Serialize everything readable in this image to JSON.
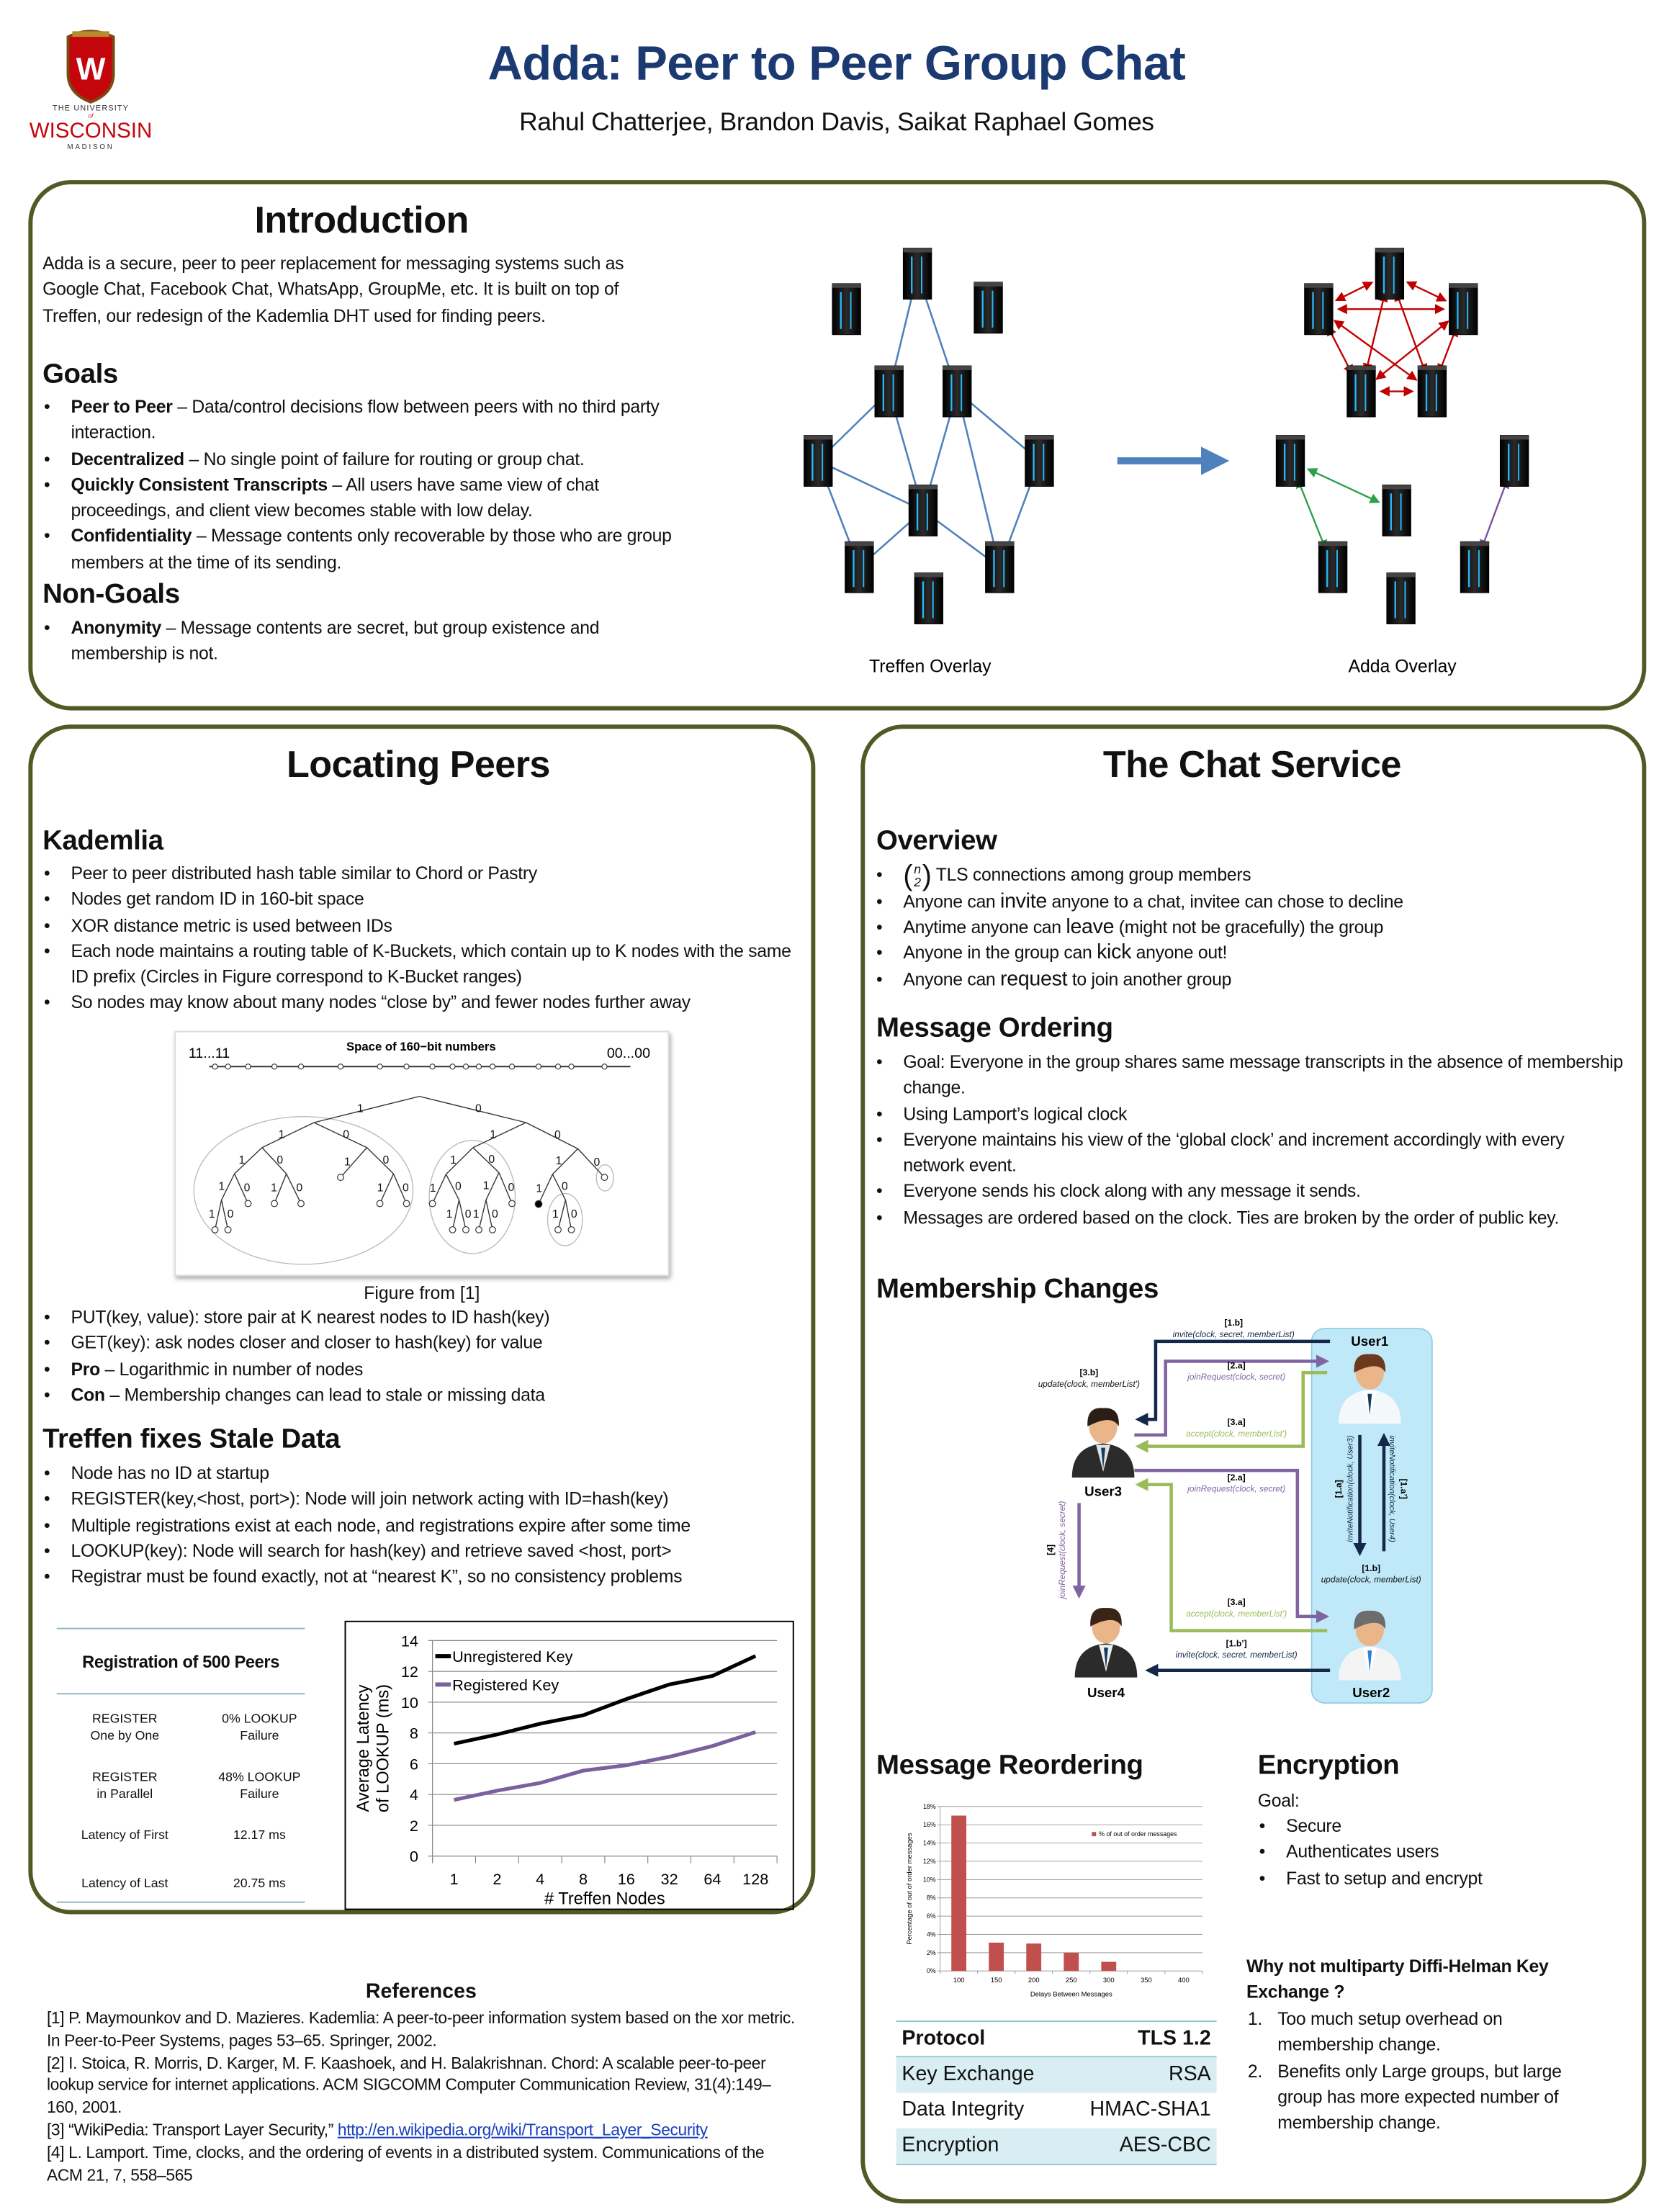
{
  "header": {
    "logo": {
      "line1": "THE UNIVERSITY",
      "line2": "of",
      "line3": "WISCONSIN",
      "line4": "MADISON",
      "crest_letter": "W",
      "crest_color": "#c5050c"
    },
    "title": "Adda: Peer to Peer Group Chat",
    "authors": "Rahul Chatterjee, Brandon Davis, Saikat Raphael Gomes"
  },
  "colors": {
    "title": "#1c3a72",
    "panel_border": "#4e5b24",
    "link": "#1a3fc0"
  },
  "intro": {
    "heading": "Introduction",
    "paragraph": "Adda is a secure, peer to peer replacement for messaging systems such as Google Chat, Facebook Chat, WhatsApp, GroupMe, etc. It is built on top of Treffen, our redesign of the Kademlia DHT used for finding peers.",
    "goals_heading": "Goals",
    "goals": [
      {
        "term": "Peer to Peer",
        "text": " – Data/control decisions flow between peers with no third party interaction."
      },
      {
        "term": "Decentralized",
        "text": " – No single point of failure for routing or group chat."
      },
      {
        "term": "Quickly Consistent Transcripts",
        "text": " – All users have same view of chat proceedings, and client view becomes stable with low delay."
      },
      {
        "term": "Confidentiality",
        "text": " – Message contents only recoverable by those who are group members at the time of its sending."
      }
    ],
    "nongoals_heading": "Non-Goals",
    "nongoals": [
      {
        "term": "Anonymity",
        "text": " – Message contents are secret, but group existence and membership is not."
      }
    ],
    "figure": {
      "treffen_label": "Treffen Overlay",
      "adda_label": "Adda Overlay",
      "icon": "server-icon"
    }
  },
  "locating": {
    "heading": "Locating Peers",
    "kademlia_heading": "Kademlia",
    "kademlia": [
      {
        "text": "Peer to peer distributed hash table similar to Chord or Pastry"
      },
      {
        "text": "Nodes get random ID in 160-bit space"
      },
      {
        "text": "XOR distance metric is used between IDs"
      },
      {
        "text": "Each node maintains a routing table of K-Buckets, which contain up to K nodes with the same ID prefix (Circles in Figure correspond to K-Bucket ranges)"
      },
      {
        "text": "So nodes may know about many nodes “close by” and fewer nodes further away"
      }
    ],
    "figure": {
      "title": "Space of 160−bit numbers",
      "left_label": "11...11",
      "right_label": "00...00",
      "bit_one": "1",
      "bit_zero": "0",
      "caption": "Figure from [1]"
    },
    "ops": [
      {
        "text": "PUT(key, value): store pair at K nearest nodes to ID hash(key)"
      },
      {
        "text": "GET(key): ask nodes closer and closer to hash(key) for value"
      },
      {
        "term": "Pro",
        "text": " – Logarithmic in number of nodes"
      },
      {
        "term": "Con",
        "text": " – Membership changes can lead to stale or missing data"
      }
    ],
    "treffen_heading": "Treffen fixes Stale Data",
    "treffen": [
      {
        "text": "Node has no ID at startup"
      },
      {
        "text": "REGISTER(key,<host, port>): Node will join network acting with ID=hash(key)"
      },
      {
        "text": "Multiple registrations exist at each node, and registrations expire after some time"
      },
      {
        "text": "LOOKUP(key): Node will search for hash(key) and retrieve saved <host, port>"
      },
      {
        "text": "Registrar must be found exactly, not at “nearest K”, so no consistency problems"
      }
    ],
    "registration_table": {
      "title": "Registration of 500 Peers",
      "rows": [
        {
          "label": [
            "REGISTER",
            "One by One"
          ],
          "value": [
            "0% LOOKUP",
            "Failure"
          ]
        },
        {
          "label": [
            "REGISTER",
            "in Parallel"
          ],
          "value": [
            "48% LOOKUP",
            "Failure"
          ]
        },
        {
          "label": [
            "Latency of First"
          ],
          "value": [
            "12.17 ms"
          ]
        },
        {
          "label": [
            "Latency of Last"
          ],
          "value": [
            "20.75 ms"
          ]
        }
      ]
    }
  },
  "chat": {
    "heading": "The Chat Service",
    "overview_heading": "Overview",
    "overview_binom": {
      "top": "n",
      "bottom": "2"
    },
    "overview": [
      {
        "pre": "",
        "key": "",
        "post": " TLS connections among group members",
        "binom": true
      },
      {
        "pre": "Anyone can ",
        "key": "invite",
        "post": " anyone to a chat, invitee can chose to decline"
      },
      {
        "pre": "Anytime anyone can ",
        "key": "leave",
        "post": " (might not be gracefully) the group"
      },
      {
        "pre": "Anyone in the group can ",
        "key": "kick",
        "post": " anyone out!"
      },
      {
        "pre": "Anyone can ",
        "key": "request",
        "post": " to join another group"
      }
    ],
    "ordering_heading": "Message Ordering",
    "ordering": [
      {
        "text": "Goal: Everyone in the group shares same message transcripts in the absence of membership change."
      },
      {
        "text": "Using Lamport’s logical clock"
      },
      {
        "text": "Everyone maintains his view of the ‘global clock’ and increment accordingly with every network event."
      },
      {
        "text": "Everyone sends his clock along with any message it sends."
      },
      {
        "text": "Messages are ordered based on the clock. Ties are broken by the order of public key."
      }
    ],
    "membership_heading": "Membership Changes",
    "membership_diagram": {
      "users": [
        "User1",
        "User2",
        "User3",
        "User4"
      ],
      "messages": [
        {
          "tag": "[1.b]",
          "call": "invite(clock, secret, memberList)"
        },
        {
          "tag": "[3.b]",
          "call": "update(clock, memberList')"
        },
        {
          "tag": "[2.a]",
          "call": "joinRequest(clock, secret)"
        },
        {
          "tag": "[3.a]",
          "call": "accept(clock, memberList')"
        },
        {
          "tag": "[2.a]",
          "call": "joinRequest(clock, secret)"
        },
        {
          "tag": "[3.a]",
          "call": "accept(clock, memberList')"
        },
        {
          "tag": "[1.b’]",
          "call": "invite(clock, secret, memberList)"
        },
        {
          "tag": "[1.b]",
          "call": "update(clock, memberList)"
        },
        {
          "tag": "[4]",
          "call": "joinRequest(clock, secret)"
        },
        {
          "tag": "[1.a]",
          "call": "inviteNotification(clock, User3)"
        },
        {
          "tag": "[1.a’]",
          "call": "inviteNotification(clock, User4)"
        }
      ],
      "colors": {
        "invite": "#14284a",
        "join": "#8064a2",
        "accept": "#9bbb59",
        "panel": "#bfe9f8"
      }
    },
    "reordering_heading": "Message Reordering",
    "protocol_table": {
      "rows": [
        {
          "k": "Protocol",
          "v": "TLS 1.2"
        },
        {
          "k": "Key Exchange",
          "v": "RSA"
        },
        {
          "k": "Data Integrity",
          "v": "HMAC-SHA1"
        },
        {
          "k": "Encryption",
          "v": "AES-CBC"
        }
      ]
    },
    "encryption_heading": "Encryption",
    "encryption_goal": "Goal:",
    "encryption": [
      {
        "text": "Secure"
      },
      {
        "text": "Authenticates users"
      },
      {
        "text": "Fast to setup and encrypt"
      }
    ],
    "why_heading": "Why not multiparty Diffi-Helman Key Exchange ?",
    "why": [
      {
        "text": "Too much setup overhead on membership change."
      },
      {
        "text": "Benefits only Large groups, but large group has more expected number of membership change."
      }
    ]
  },
  "references": {
    "heading": "References",
    "items": [
      {
        "text": "[1] P. Maymounkov and D. Mazieres. Kademlia: A peer-to-peer information system based on the xor metric. In Peer-to-Peer Systems, pages 53–65. Springer, 2002."
      },
      {
        "text": "[2] I. Stoica, R. Morris, D. Karger, M. F. Kaashoek, and H. Balakrishnan. Chord: A scalable peer-to-peer lookup service for internet applications. ACM SIGCOMM Computer Communication Review, 31(4):149–160, 2001."
      },
      {
        "text": "[3] “WikiPedia: Transport Layer Security,” ",
        "link": "http://en.wikipedia.org/wiki/Transport_Layer_Security"
      },
      {
        "text": "[4] L. Lamport. Time, clocks, and the ordering of events in a distributed system. Communications of the ACM 21, 7, 558–565"
      }
    ]
  },
  "chart_data": [
    {
      "type": "line",
      "title": "",
      "xlabel": "# Treffen Nodes",
      "ylabel": [
        "Average Latency",
        "of LOOKUP (ms)"
      ],
      "categories": [
        "1",
        "2",
        "4",
        "8",
        "16",
        "32",
        "64",
        "128"
      ],
      "ylim": [
        0,
        14
      ],
      "yticks": [
        0,
        2,
        4,
        6,
        8,
        10,
        12,
        14
      ],
      "grid": true,
      "legend": "top-left",
      "series": [
        {
          "name": "Unregistered Key",
          "color": "#000000",
          "values": [
            7.3,
            7.9,
            8.6,
            9.15,
            10.2,
            11.15,
            11.7,
            13.0
          ]
        },
        {
          "name": "Registered Key",
          "color": "#7b5f9e",
          "values": [
            3.65,
            4.25,
            4.75,
            5.55,
            5.9,
            6.45,
            7.15,
            8.05
          ]
        }
      ]
    },
    {
      "type": "bar",
      "title": "",
      "xlabel": "Delays Between Messages",
      "ylabel": "Percentage of out of order messages",
      "categories": [
        "100",
        "150",
        "200",
        "250",
        "300",
        "350",
        "400"
      ],
      "ylim": [
        0,
        18
      ],
      "yticks": [
        "0%",
        "2%",
        "4%",
        "6%",
        "8%",
        "10%",
        "12%",
        "14%",
        "16%",
        "18%"
      ],
      "grid": true,
      "legend": "top-right",
      "series": [
        {
          "name": "% of out of order messages",
          "color": "#c0504d",
          "values": [
            17,
            3.1,
            3.0,
            2.0,
            1.0,
            0,
            0
          ]
        }
      ]
    }
  ]
}
